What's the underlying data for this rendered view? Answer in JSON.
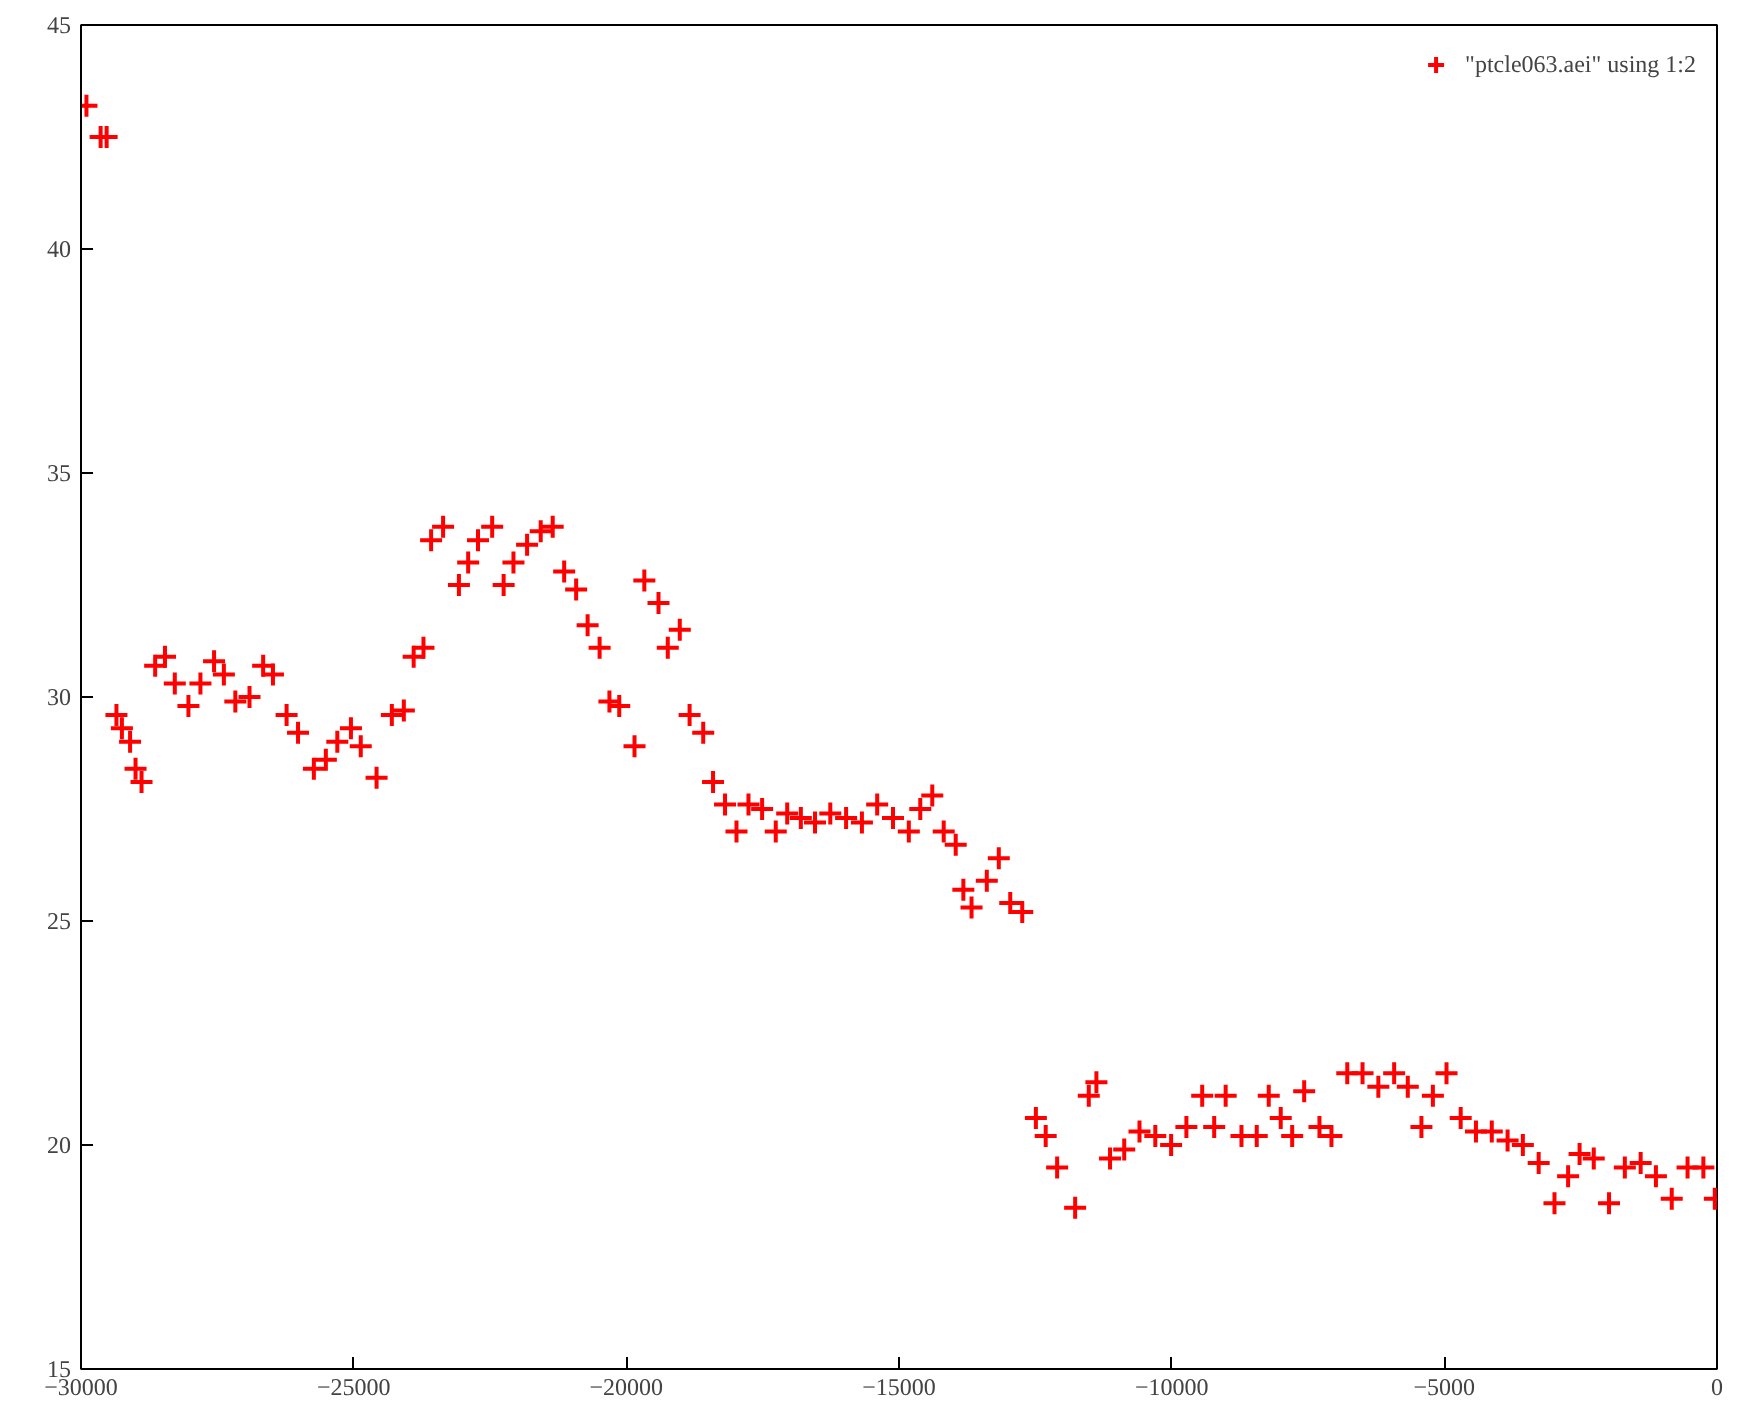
{
  "chart_data": {
    "type": "scatter",
    "xlim": [
      -30000,
      0
    ],
    "ylim": [
      15,
      45
    ],
    "xticks": [
      -30000,
      -25000,
      -20000,
      -15000,
      -10000,
      -5000,
      0
    ],
    "yticks": [
      15,
      20,
      25,
      30,
      35,
      40,
      45
    ],
    "grid": false,
    "legend": "top right",
    "marker": "cross",
    "series": [
      {
        "name": "\"ptcle063.aei\" using 1:2",
        "color": "#ff0000",
        "x": [
          -29900,
          -29640,
          -29530,
          -29350,
          -29250,
          -29100,
          -29000,
          -28890,
          -28640,
          -28460,
          -28280,
          -28030,
          -27810,
          -27560,
          -27380,
          -27170,
          -26910,
          -26660,
          -26480,
          -26230,
          -26020,
          -25730,
          -25510,
          -25300,
          -25050,
          -24870,
          -24580,
          -24300,
          -24080,
          -23900,
          -23720,
          -23580,
          -23360,
          -23070,
          -22900,
          -22720,
          -22460,
          -22250,
          -22070,
          -21820,
          -21570,
          -21350,
          -21140,
          -20920,
          -20710,
          -20490,
          -20310,
          -20130,
          -19850,
          -19670,
          -19410,
          -19240,
          -19020,
          -18840,
          -18590,
          -18410,
          -18190,
          -17980,
          -17760,
          -17510,
          -17260,
          -17050,
          -16800,
          -16540,
          -16260,
          -15970,
          -15680,
          -15400,
          -15110,
          -14820,
          -14610,
          -14390,
          -14180,
          -13960,
          -13820,
          -13670,
          -13390,
          -13170,
          -12960,
          -12740,
          -12490,
          -12310,
          -12100,
          -11770,
          -11520,
          -11380,
          -11130,
          -10870,
          -10590,
          -10300,
          -10010,
          -9730,
          -9440,
          -9220,
          -9010,
          -8720,
          -8440,
          -8220,
          -8000,
          -7790,
          -7570,
          -7290,
          -7070,
          -6780,
          -6500,
          -6210,
          -5920,
          -5670,
          -5420,
          -5210,
          -4960,
          -4700,
          -4420,
          -4130,
          -3840,
          -3560,
          -3270,
          -2980,
          -2730,
          -2520,
          -2260,
          -1980,
          -1690,
          -1400,
          -1120,
          -830,
          -540,
          -250,
          -40
        ],
        "values": [
          43.2,
          42.5,
          42.5,
          29.6,
          29.3,
          29.0,
          28.4,
          28.1,
          30.7,
          30.9,
          30.3,
          29.8,
          30.3,
          30.8,
          30.5,
          29.9,
          30.0,
          30.7,
          30.5,
          29.6,
          29.2,
          28.4,
          28.6,
          29.0,
          29.3,
          28.9,
          28.2,
          29.6,
          29.7,
          30.9,
          31.1,
          33.5,
          33.8,
          32.5,
          33.0,
          33.5,
          33.8,
          32.5,
          33.0,
          33.4,
          33.7,
          33.8,
          32.8,
          32.4,
          31.6,
          31.1,
          29.9,
          29.8,
          28.9,
          32.6,
          32.1,
          31.1,
          31.5,
          29.6,
          29.2,
          28.1,
          27.6,
          27.0,
          27.6,
          27.5,
          27.0,
          27.4,
          27.3,
          27.2,
          27.4,
          27.3,
          27.2,
          27.6,
          27.3,
          27.0,
          27.5,
          27.8,
          27.0,
          26.7,
          25.7,
          25.3,
          25.9,
          26.4,
          25.4,
          25.2,
          20.6,
          20.2,
          19.5,
          18.6,
          21.1,
          21.4,
          19.7,
          19.9,
          20.3,
          20.2,
          20.0,
          20.4,
          21.1,
          20.4,
          21.1,
          20.2,
          20.2,
          21.1,
          20.6,
          20.2,
          21.2,
          20.4,
          20.2,
          21.6,
          21.6,
          21.3,
          21.6,
          21.3,
          20.4,
          21.1,
          21.6,
          20.6,
          20.3,
          20.3,
          20.1,
          20.0,
          19.6,
          18.7,
          19.3,
          19.8,
          19.7,
          18.7,
          19.5,
          19.6,
          19.3,
          18.8,
          19.5,
          19.5,
          18.8
        ]
      }
    ]
  }
}
